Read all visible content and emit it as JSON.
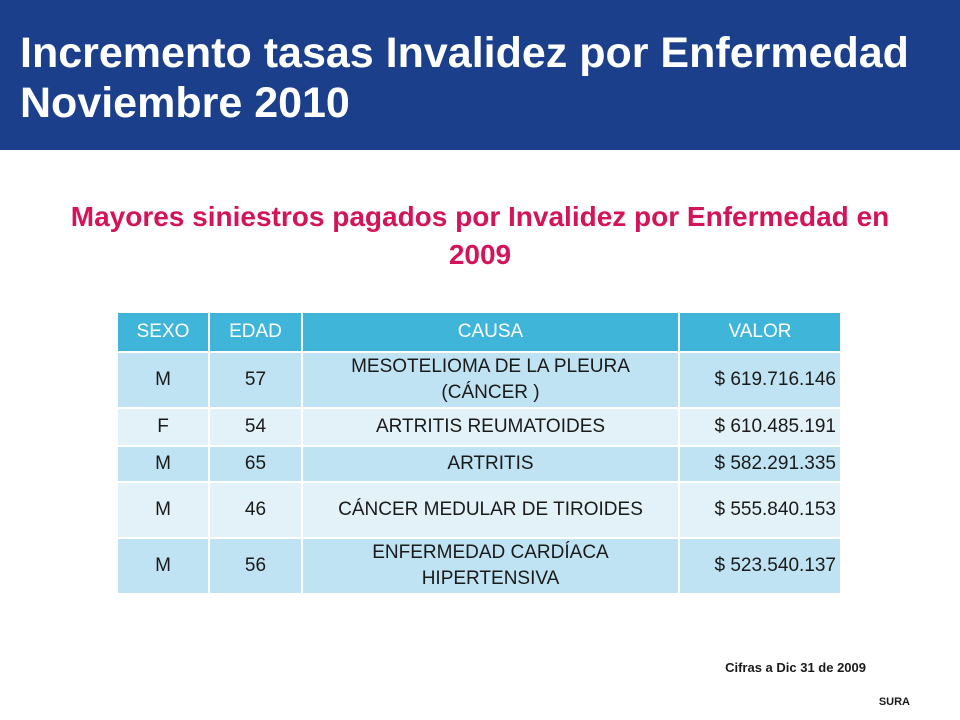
{
  "header": {
    "title": "Incremento tasas Invalidez por Enfermedad Noviembre 2010"
  },
  "subtitle": "Mayores siniestros pagados por Invalidez por Enfermedad en 2009",
  "table": {
    "columns": [
      "SEXO",
      "EDAD",
      "CAUSA",
      "VALOR"
    ],
    "rows": [
      {
        "sexo": "M",
        "edad": "57",
        "causa": "MESOTELIOMA DE LA PLEURA (CÁNCER )",
        "valor": "$ 619.716.146"
      },
      {
        "sexo": "F",
        "edad": "54",
        "causa": "ARTRITIS REUMATOIDES",
        "valor": "$ 610.485.191"
      },
      {
        "sexo": "M",
        "edad": "65",
        "causa": "ARTRITIS",
        "valor": "$ 582.291.335"
      },
      {
        "sexo": "M",
        "edad": "46",
        "causa": "CÁNCER MEDULAR DE TIROIDES",
        "valor": "$ 555.840.153"
      },
      {
        "sexo": "M",
        "edad": "56",
        "causa": "ENFERMEDAD CARDÍACA HIPERTENSIVA",
        "valor": "$ 523.540.137"
      }
    ]
  },
  "footnote": "Cifras a Dic 31 de 2009",
  "brand": "SURA",
  "colors": {
    "header_bg": "#1b3f8a",
    "subtitle": "#d4145a",
    "table_header": "#3fb6d9",
    "row_dark": "#bfe3f2",
    "row_light": "#e3f2f8"
  }
}
